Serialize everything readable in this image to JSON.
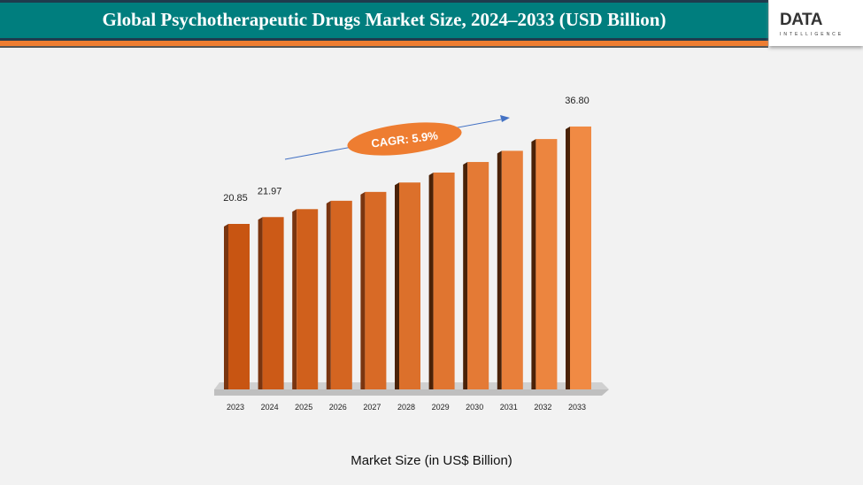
{
  "header": {
    "title": "Global Psychotherapeutic Drugs Market Size, 2024–2033 (USD Billion)",
    "logo_text": "DATA",
    "logo_subtext": "INTELLIGENCE"
  },
  "colors": {
    "header": "#007e7e",
    "accent": "#ee7d31",
    "bar": "#d8621a",
    "arrow": "#4472c4"
  },
  "chart_data": {
    "type": "bar",
    "categories": [
      "2023",
      "2024",
      "2025",
      "2026",
      "2027",
      "2028",
      "2029",
      "2030",
      "2031",
      "2032",
      "2033"
    ],
    "values": [
      20.85,
      21.97,
      23.27,
      24.64,
      26.09,
      27.63,
      29.26,
      30.99,
      32.82,
      34.75,
      36.8
    ],
    "data_labels": {
      "0": "20.85",
      "1": "21.97",
      "10": "36.80"
    },
    "annotation": "CAGR: 5.9%",
    "xlabel": "Market Size (in US$ Billion)",
    "grid": false
  }
}
